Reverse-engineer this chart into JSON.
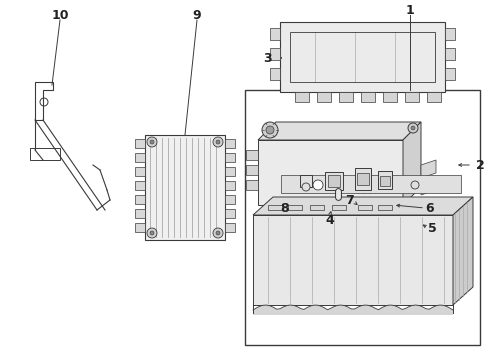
{
  "bg_color": "#ffffff",
  "lc": "#3a3a3a",
  "fill_gray": "#e0e0e0",
  "fill_dark": "#c0c0c0",
  "fill_white": "#ffffff",
  "figsize": [
    4.89,
    3.6
  ],
  "dpi": 100
}
